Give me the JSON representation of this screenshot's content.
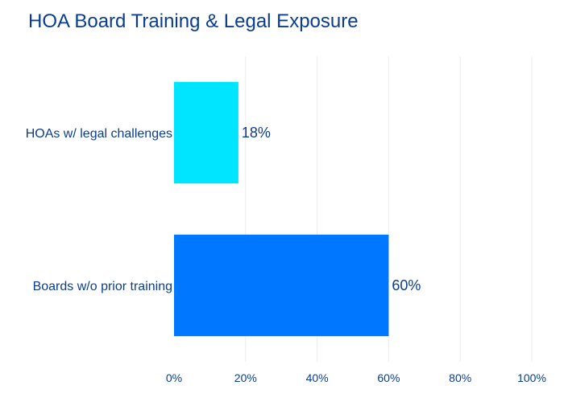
{
  "chart_data": {
    "type": "bar",
    "orientation": "horizontal",
    "title": "HOA Board Training & Legal Exposure",
    "categories": [
      "HOAs w/ legal challenges",
      "Boards w/o prior training"
    ],
    "values": [
      18,
      60
    ],
    "data_labels": [
      "18%",
      "60%"
    ],
    "bar_colors": [
      "#00e5ff",
      "#0077ff"
    ],
    "xlim": [
      0,
      100
    ],
    "xticks": [
      0,
      20,
      40,
      60,
      80,
      100
    ],
    "xtick_labels": [
      "0%",
      "20%",
      "40%",
      "60%",
      "80%",
      "100%"
    ],
    "grid": true,
    "legend": "none"
  }
}
